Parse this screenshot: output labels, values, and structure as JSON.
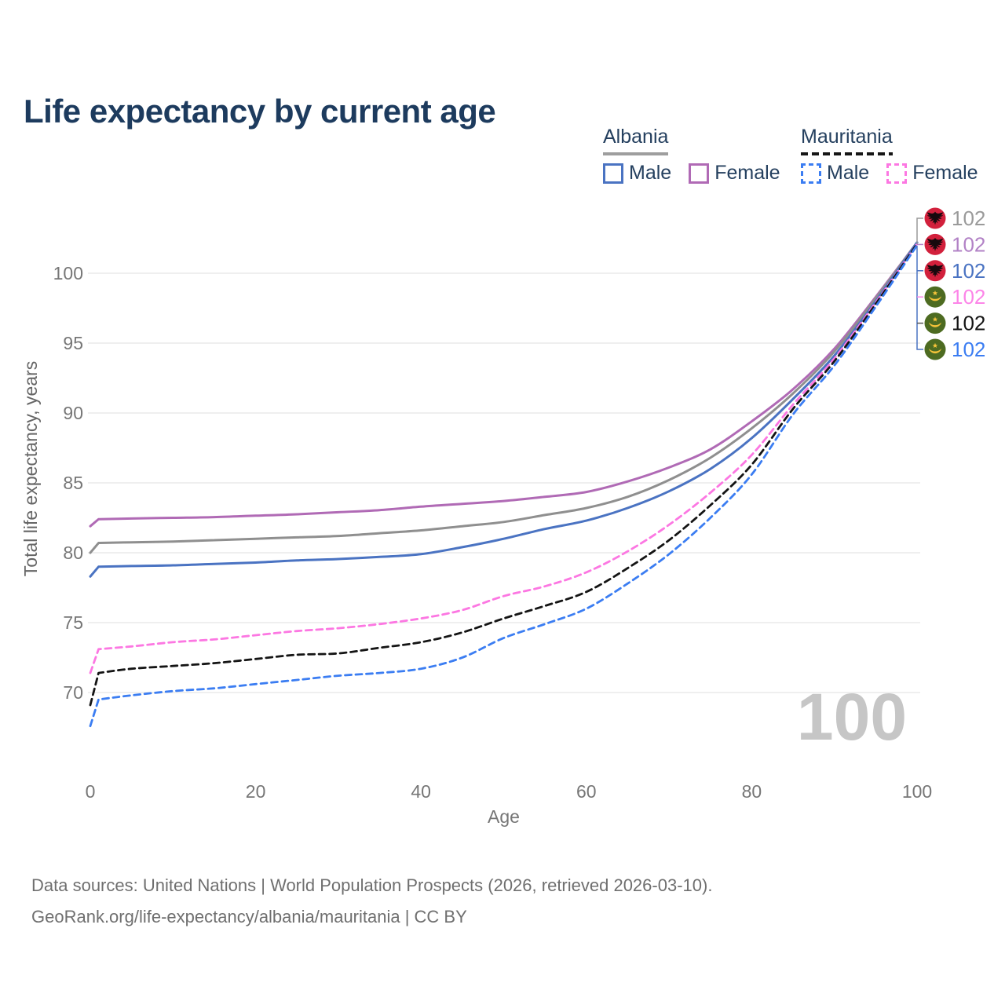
{
  "title": "Life expectancy by current age",
  "legend": {
    "groups": [
      {
        "country": "Albania",
        "line_style": "solid",
        "underline_color": "#9e9e9e",
        "items": [
          {
            "label": "Male",
            "color": "#4a73c2",
            "dashed": false
          },
          {
            "label": "Female",
            "color": "#b06ab5",
            "dashed": false
          }
        ]
      },
      {
        "country": "Mauritania",
        "line_style": "dashed",
        "underline_color": "#161616",
        "items": [
          {
            "label": "Male",
            "color": "#3b7df2",
            "dashed": true
          },
          {
            "label": "Female",
            "color": "#fc77e2",
            "dashed": true
          }
        ]
      }
    ]
  },
  "axes": {
    "y": {
      "label": "Total life expectancy, years",
      "ticks": [
        70,
        75,
        80,
        85,
        90,
        95,
        100
      ],
      "range": [
        67,
        103
      ]
    },
    "x": {
      "label": "Age",
      "ticks": [
        0,
        20,
        40,
        60,
        80,
        100
      ],
      "range": [
        0,
        100
      ]
    }
  },
  "watermark": "100",
  "end_labels": [
    {
      "country": "Albania",
      "flag": "albania",
      "series": "Total",
      "value": "102",
      "color": "#9a9a9a"
    },
    {
      "country": "Albania",
      "flag": "albania",
      "series": "Female",
      "value": "102",
      "color": "#b282c6"
    },
    {
      "country": "Albania",
      "flag": "albania",
      "series": "Male",
      "value": "102",
      "color": "#4a73c2"
    },
    {
      "country": "Mauritania",
      "flag": "mauritania",
      "series": "Female",
      "value": "102",
      "color": "#fc85e8"
    },
    {
      "country": "Mauritania",
      "flag": "mauritania",
      "series": "Total",
      "value": "102",
      "color": "#141414"
    },
    {
      "country": "Mauritania",
      "flag": "mauritania",
      "series": "Male",
      "value": "102",
      "color": "#3b7df2"
    }
  ],
  "footer": {
    "line1": "Data sources: United Nations | World Population Prospects (2026, retrieved 2026-03-10).",
    "line2": "GeoRank.org/life-expectancy/albania/mauritania | CC BY"
  },
  "chart_data": {
    "type": "line",
    "title": "Life expectancy by current age",
    "xlabel": "Age",
    "ylabel": "Total life expectancy, years",
    "x_ages": [
      0,
      1,
      5,
      10,
      15,
      20,
      25,
      30,
      35,
      40,
      45,
      50,
      55,
      60,
      65,
      70,
      75,
      80,
      85,
      90,
      95,
      100
    ],
    "xlim": [
      0,
      100
    ],
    "ylim": [
      67,
      103
    ],
    "grid": "horizontal-only",
    "legend_position": "top-right",
    "series": [
      {
        "name": "Albania Female",
        "color": "#b06ab5",
        "dash": false,
        "width": 3,
        "values": [
          81.9,
          82.4,
          82.45,
          82.5,
          82.55,
          82.65,
          82.75,
          82.9,
          83.05,
          83.3,
          83.5,
          83.7,
          84.0,
          84.35,
          85.1,
          86.1,
          87.4,
          89.4,
          91.7,
          94.6,
          98.3,
          102.2
        ]
      },
      {
        "name": "Albania Total",
        "color": "#8f8f8f",
        "dash": false,
        "width": 3,
        "values": [
          80.0,
          80.7,
          80.75,
          80.8,
          80.9,
          81.0,
          81.1,
          81.2,
          81.4,
          81.6,
          81.9,
          82.2,
          82.7,
          83.2,
          84.0,
          85.2,
          86.8,
          88.9,
          91.4,
          94.4,
          98.2,
          102.2
        ]
      },
      {
        "name": "Albania Male",
        "color": "#4a73c2",
        "dash": false,
        "width": 3,
        "values": [
          78.3,
          79.0,
          79.05,
          79.1,
          79.2,
          79.3,
          79.45,
          79.55,
          79.7,
          79.9,
          80.4,
          81.0,
          81.7,
          82.3,
          83.2,
          84.4,
          86.0,
          88.2,
          91.0,
          94.1,
          98.0,
          102.2
        ]
      },
      {
        "name": "Mauritania Female",
        "color": "#fc77e2",
        "dash": true,
        "width": 2.8,
        "values": [
          71.4,
          73.1,
          73.3,
          73.6,
          73.8,
          74.1,
          74.4,
          74.6,
          74.9,
          75.3,
          75.9,
          76.9,
          77.6,
          78.6,
          80.1,
          82.0,
          84.3,
          87.0,
          90.6,
          93.9,
          97.9,
          102.1
        ]
      },
      {
        "name": "Mauritania Total",
        "color": "#141414",
        "dash": true,
        "width": 2.8,
        "values": [
          69.1,
          71.4,
          71.7,
          71.9,
          72.1,
          72.4,
          72.7,
          72.8,
          73.2,
          73.6,
          74.3,
          75.3,
          76.2,
          77.2,
          78.9,
          80.9,
          83.4,
          86.3,
          90.3,
          93.7,
          97.8,
          102.1
        ]
      },
      {
        "name": "Mauritania Male",
        "color": "#3b7df2",
        "dash": true,
        "width": 2.8,
        "values": [
          67.6,
          69.5,
          69.8,
          70.1,
          70.3,
          70.6,
          70.9,
          71.2,
          71.4,
          71.7,
          72.5,
          73.9,
          74.9,
          76.0,
          77.8,
          79.9,
          82.5,
          85.6,
          89.9,
          93.4,
          97.6,
          102.0
        ]
      }
    ]
  }
}
